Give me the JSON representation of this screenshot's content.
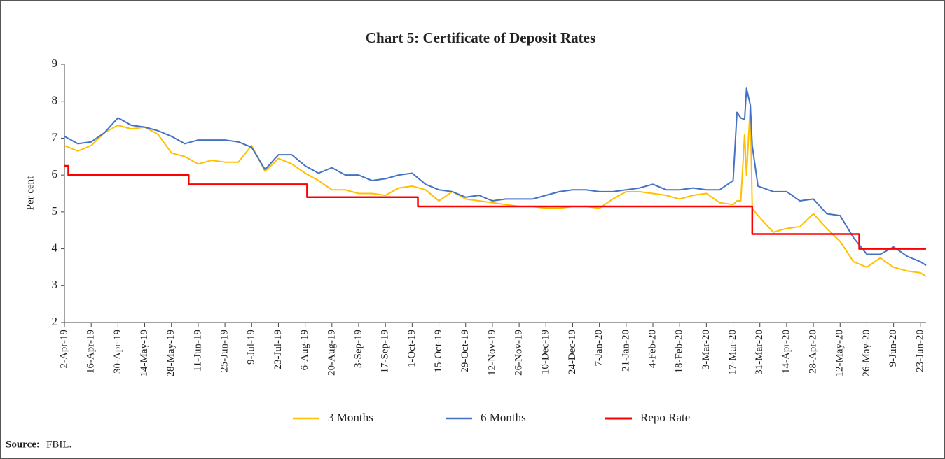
{
  "chart_data": {
    "type": "line",
    "title": "Chart 5: Certificate of Deposit Rates",
    "y_label": "Per cent",
    "source_label": "Source:",
    "source": "FBIL.",
    "xlim": [
      "2019-04-02",
      "2020-06-26"
    ],
    "ylim": [
      2,
      9
    ],
    "yticks": [
      2,
      3,
      4,
      5,
      6,
      7,
      8,
      9
    ],
    "xticks": [
      {
        "value": "2019-04-02",
        "label": "2-Apr-19"
      },
      {
        "value": "2019-04-16",
        "label": "16-Apr-19"
      },
      {
        "value": "2019-04-30",
        "label": "30-Apr-19"
      },
      {
        "value": "2019-05-14",
        "label": "14-May-19"
      },
      {
        "value": "2019-05-28",
        "label": "28-May-19"
      },
      {
        "value": "2019-06-11",
        "label": "11-Jun-19"
      },
      {
        "value": "2019-06-25",
        "label": "25-Jun-19"
      },
      {
        "value": "2019-07-09",
        "label": "9-Jul-19"
      },
      {
        "value": "2019-07-23",
        "label": "23-Jul-19"
      },
      {
        "value": "2019-08-06",
        "label": "6-Aug-19"
      },
      {
        "value": "2019-08-20",
        "label": "20-Aug-19"
      },
      {
        "value": "2019-09-03",
        "label": "3-Sep-19"
      },
      {
        "value": "2019-09-17",
        "label": "17-Sep-19"
      },
      {
        "value": "2019-10-01",
        "label": "1-Oct-19"
      },
      {
        "value": "2019-10-15",
        "label": "15-Oct-19"
      },
      {
        "value": "2019-10-29",
        "label": "29-Oct-19"
      },
      {
        "value": "2019-11-12",
        "label": "12-Nov-19"
      },
      {
        "value": "2019-11-26",
        "label": "26-Nov-19"
      },
      {
        "value": "2019-12-10",
        "label": "10-Dec-19"
      },
      {
        "value": "2019-12-24",
        "label": "24-Dec-19"
      },
      {
        "value": "2020-01-07",
        "label": "7-Jan-20"
      },
      {
        "value": "2020-01-21",
        "label": "21-Jan-20"
      },
      {
        "value": "2020-02-04",
        "label": "4-Feb-20"
      },
      {
        "value": "2020-02-18",
        "label": "18-Feb-20"
      },
      {
        "value": "2020-03-03",
        "label": "3-Mar-20"
      },
      {
        "value": "2020-03-17",
        "label": "17-Mar-20"
      },
      {
        "value": "2020-03-31",
        "label": "31-Mar-20"
      },
      {
        "value": "2020-04-14",
        "label": "14-Apr-20"
      },
      {
        "value": "2020-04-28",
        "label": "28-Apr-20"
      },
      {
        "value": "2020-05-12",
        "label": "12-May-20"
      },
      {
        "value": "2020-05-26",
        "label": "26-May-20"
      },
      {
        "value": "2020-06-09",
        "label": "9-Jun-20"
      },
      {
        "value": "2020-06-23",
        "label": "23-Jun-20"
      }
    ],
    "x": [
      "2019-04-02",
      "2019-04-09",
      "2019-04-16",
      "2019-04-23",
      "2019-04-30",
      "2019-05-07",
      "2019-05-14",
      "2019-05-21",
      "2019-05-28",
      "2019-06-04",
      "2019-06-11",
      "2019-06-18",
      "2019-06-25",
      "2019-07-02",
      "2019-07-09",
      "2019-07-16",
      "2019-07-23",
      "2019-07-30",
      "2019-08-06",
      "2019-08-13",
      "2019-08-20",
      "2019-08-27",
      "2019-09-03",
      "2019-09-10",
      "2019-09-17",
      "2019-09-24",
      "2019-10-01",
      "2019-10-08",
      "2019-10-15",
      "2019-10-22",
      "2019-10-29",
      "2019-11-05",
      "2019-11-12",
      "2019-11-19",
      "2019-11-26",
      "2019-12-03",
      "2019-12-10",
      "2019-12-17",
      "2019-12-24",
      "2019-12-31",
      "2020-01-07",
      "2020-01-14",
      "2020-01-21",
      "2020-01-28",
      "2020-02-04",
      "2020-02-11",
      "2020-02-18",
      "2020-02-25",
      "2020-03-03",
      "2020-03-10",
      "2020-03-17",
      "2020-03-19",
      "2020-03-21",
      "2020-03-23",
      "2020-03-24",
      "2020-03-26",
      "2020-03-27",
      "2020-03-30",
      "2020-04-07",
      "2020-04-14",
      "2020-04-21",
      "2020-04-28",
      "2020-05-05",
      "2020-05-12",
      "2020-05-19",
      "2020-05-26",
      "2020-06-02",
      "2020-06-09",
      "2020-06-16",
      "2020-06-23",
      "2020-06-26"
    ],
    "series": [
      {
        "name": "3 Months",
        "color": "#ffc000",
        "values": [
          6.8,
          6.65,
          6.8,
          7.15,
          7.35,
          7.25,
          7.3,
          7.1,
          6.6,
          6.5,
          6.3,
          6.4,
          6.35,
          6.35,
          6.8,
          6.1,
          6.45,
          6.3,
          6.05,
          5.85,
          5.6,
          5.6,
          5.5,
          5.5,
          5.45,
          5.65,
          5.7,
          5.6,
          5.3,
          5.55,
          5.35,
          5.3,
          5.25,
          5.2,
          5.15,
          5.15,
          5.1,
          5.1,
          5.15,
          5.15,
          5.1,
          5.35,
          5.55,
          5.55,
          5.5,
          5.45,
          5.35,
          5.45,
          5.5,
          5.25,
          5.2,
          5.3,
          5.3,
          7.1,
          6.0,
          7.9,
          5.1,
          4.9,
          4.45,
          4.55,
          4.6,
          4.95,
          4.55,
          4.2,
          3.65,
          3.5,
          3.75,
          3.5,
          3.4,
          3.35,
          3.25
        ]
      },
      {
        "name": "6 Months",
        "color": "#4472c4",
        "values": [
          7.05,
          6.85,
          6.9,
          7.15,
          7.55,
          7.35,
          7.3,
          7.2,
          7.05,
          6.85,
          6.95,
          6.95,
          6.95,
          6.9,
          6.75,
          6.15,
          6.55,
          6.55,
          6.25,
          6.05,
          6.2,
          6.0,
          6.0,
          5.85,
          5.9,
          6.0,
          6.05,
          5.75,
          5.6,
          5.55,
          5.4,
          5.45,
          5.3,
          5.35,
          5.35,
          5.35,
          5.45,
          5.55,
          5.6,
          5.6,
          5.55,
          5.55,
          5.6,
          5.65,
          5.75,
          5.6,
          5.6,
          5.65,
          5.6,
          5.6,
          5.85,
          7.7,
          7.55,
          7.5,
          8.35,
          7.9,
          6.8,
          5.7,
          5.55,
          5.55,
          5.3,
          5.35,
          4.95,
          4.9,
          4.3,
          3.85,
          3.85,
          4.05,
          3.8,
          3.65,
          3.55
        ]
      },
      {
        "name": "Repo Rate",
        "color": "#ff0000",
        "step": true,
        "x": [
          "2019-04-02",
          "2019-04-04",
          "2019-06-06",
          "2019-08-07",
          "2019-10-04",
          "2020-03-27",
          "2020-05-22",
          "2020-06-26"
        ],
        "values": [
          6.25,
          6.0,
          5.75,
          5.4,
          5.15,
          4.4,
          4.0,
          4.0
        ]
      }
    ]
  }
}
